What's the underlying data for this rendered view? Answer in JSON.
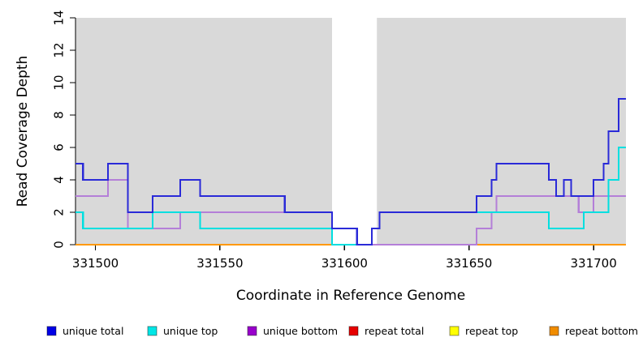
{
  "chart_data": {
    "type": "line",
    "subtype": "step-coverage-plot",
    "title": "",
    "xlabel": "Coordinate in Reference Genome",
    "ylabel": "Read Coverage Depth",
    "xlim": [
      331492,
      331713
    ],
    "ylim": [
      0,
      14
    ],
    "x_ticks": [
      "331500",
      "331550",
      "331600",
      "331650",
      "331700"
    ],
    "x_tick_values": [
      331500,
      331550,
      331600,
      331650,
      331700
    ],
    "y_ticks": [
      "0",
      "2",
      "4",
      "6",
      "8",
      "10",
      "12",
      "14"
    ],
    "y_tick_values": [
      0,
      2,
      4,
      6,
      8,
      10,
      12,
      14
    ],
    "grid": false,
    "plot_background_color": "#d9d9d9",
    "page_background_color": "#ffffff",
    "gap_region": {
      "from": 331595,
      "to": 331613,
      "color": "#ffffff"
    },
    "axis_color": "#000000",
    "series": [
      {
        "name": "repeat total",
        "color": "#e60000",
        "steps": [
          [
            331492,
            0
          ]
        ]
      },
      {
        "name": "repeat top",
        "color": "#ffff00",
        "steps": [
          [
            331492,
            0
          ]
        ]
      },
      {
        "name": "repeat bottom",
        "color": "#ff9800",
        "steps": [
          [
            331492,
            0
          ]
        ]
      },
      {
        "name": "unique bottom",
        "color": "#b47fd8",
        "steps": [
          [
            331492,
            3
          ],
          [
            331505,
            4
          ],
          [
            331513,
            1
          ],
          [
            331534,
            2
          ],
          [
            331595,
            1
          ],
          [
            331605,
            0
          ],
          [
            331653,
            1
          ],
          [
            331659,
            2
          ],
          [
            331661,
            3
          ],
          [
            331694,
            2
          ],
          [
            331700,
            3
          ]
        ]
      },
      {
        "name": "unique top",
        "color": "#00dfe0",
        "steps": [
          [
            331492,
            2
          ],
          [
            331495,
            1
          ],
          [
            331523,
            2
          ],
          [
            331542,
            1
          ],
          [
            331595,
            0
          ],
          [
            331611,
            1
          ],
          [
            331614,
            2
          ],
          [
            331682,
            1
          ],
          [
            331696,
            2
          ],
          [
            331706,
            4
          ],
          [
            331710,
            6
          ]
        ]
      },
      {
        "name": "unique total",
        "color": "#2a2ad8",
        "steps": [
          [
            331492,
            5
          ],
          [
            331495,
            4
          ],
          [
            331505,
            5
          ],
          [
            331513,
            2
          ],
          [
            331523,
            3
          ],
          [
            331534,
            4
          ],
          [
            331542,
            3
          ],
          [
            331576,
            2
          ],
          [
            331595,
            1
          ],
          [
            331605,
            0
          ],
          [
            331611,
            1
          ],
          [
            331614,
            2
          ],
          [
            331653,
            3
          ],
          [
            331659,
            4
          ],
          [
            331661,
            5
          ],
          [
            331682,
            4
          ],
          [
            331685,
            3
          ],
          [
            331688,
            4
          ],
          [
            331691,
            3
          ],
          [
            331700,
            4
          ],
          [
            331704,
            5
          ],
          [
            331706,
            7
          ],
          [
            331710,
            9
          ]
        ]
      }
    ],
    "legend": {
      "position": "bottom",
      "items": [
        {
          "label": "unique total",
          "color": "#0000e6"
        },
        {
          "label": "unique top",
          "color": "#00e6e6"
        },
        {
          "label": "unique bottom",
          "color": "#9900cc"
        },
        {
          "label": "repeat total",
          "color": "#e60000"
        },
        {
          "label": "repeat top",
          "color": "#ffff00"
        },
        {
          "label": "repeat bottom",
          "color": "#f08c00"
        }
      ]
    }
  }
}
